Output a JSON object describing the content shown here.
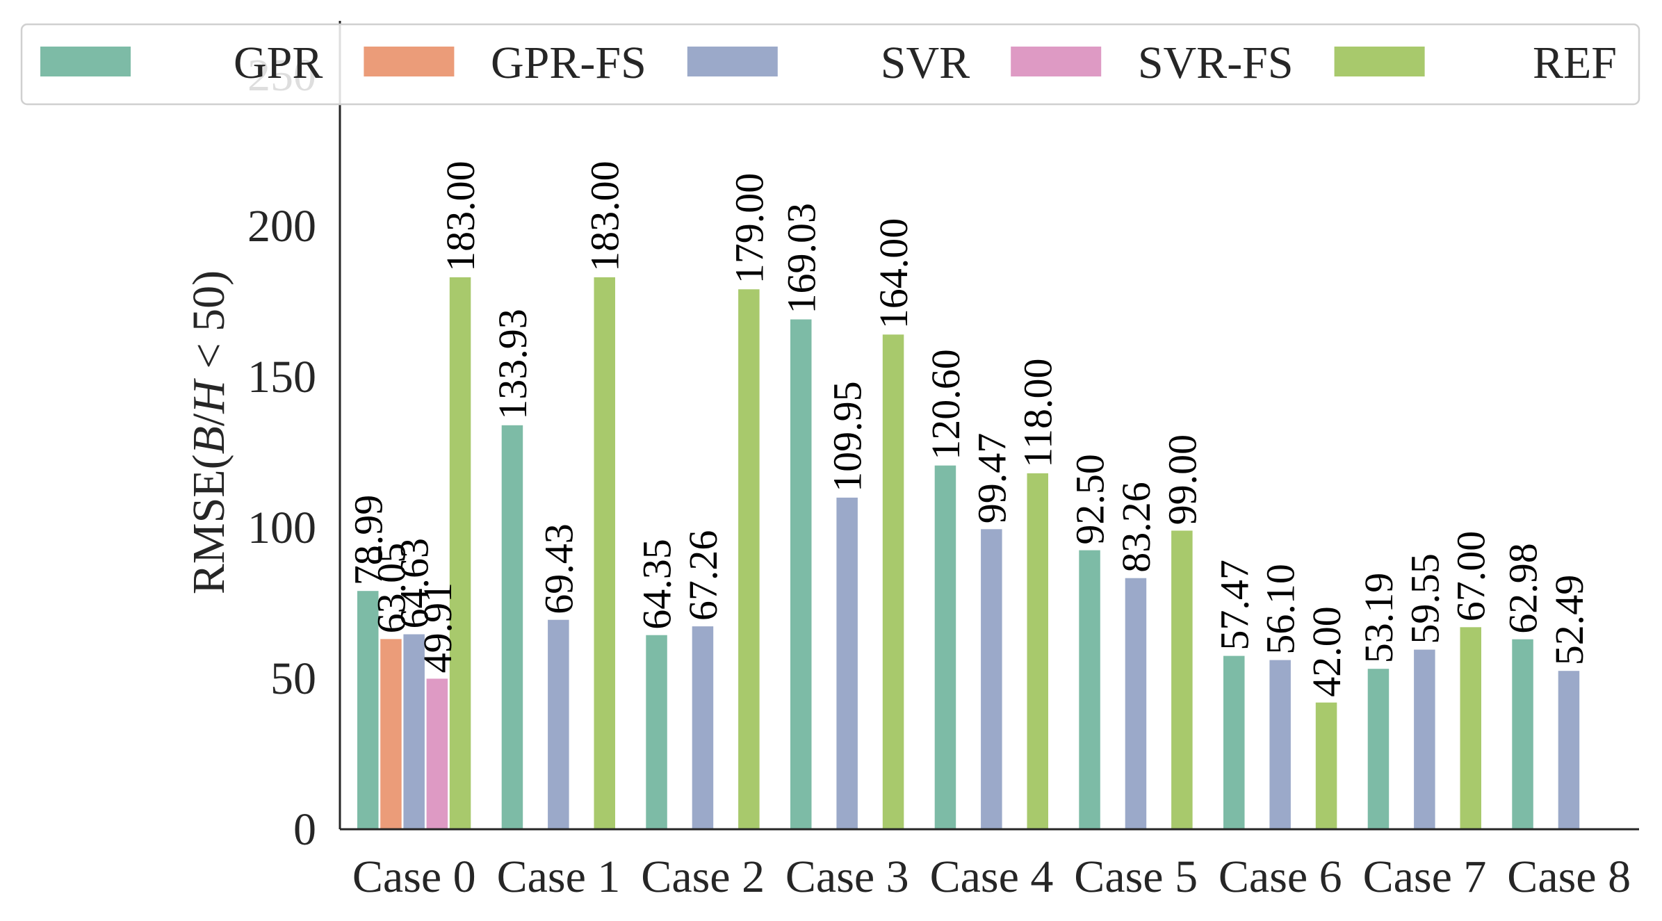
{
  "chart_data": {
    "type": "bar",
    "title": "",
    "xlabel": "",
    "ylabel": {
      "prefix": "RMSE(",
      "var1": "B",
      "slash": "/",
      "var2": "H",
      "rel": " < 50)"
    },
    "ylim": [
      0,
      250
    ],
    "yticks": [
      0,
      50,
      100,
      150,
      200,
      250
    ],
    "grid": false,
    "legend_position": "top",
    "categories": [
      "Case 0",
      "Case 1",
      "Case 2",
      "Case 3",
      "Case 4",
      "Case 5",
      "Case 6",
      "Case 7",
      "Case 8"
    ],
    "series": [
      {
        "name": "GPR",
        "color": "#7dbba6",
        "values": [
          78.99,
          133.93,
          64.35,
          169.03,
          120.6,
          92.5,
          57.47,
          53.19,
          62.98
        ]
      },
      {
        "name": "GPR-FS",
        "color": "#eb9c79",
        "values": [
          63.05,
          null,
          null,
          null,
          null,
          null,
          null,
          null,
          null
        ]
      },
      {
        "name": "SVR",
        "color": "#9ba9c9",
        "values": [
          64.63,
          69.43,
          67.26,
          109.95,
          99.47,
          83.26,
          56.1,
          59.55,
          52.49
        ]
      },
      {
        "name": "SVR-FS",
        "color": "#de9ac4",
        "values": [
          49.91,
          null,
          null,
          null,
          null,
          null,
          null,
          null,
          null
        ]
      },
      {
        "name": "REF",
        "color": "#a8c96c",
        "values": [
          183.0,
          183.0,
          179.0,
          164.0,
          118.0,
          99.0,
          42.0,
          67.0,
          null
        ]
      }
    ]
  }
}
